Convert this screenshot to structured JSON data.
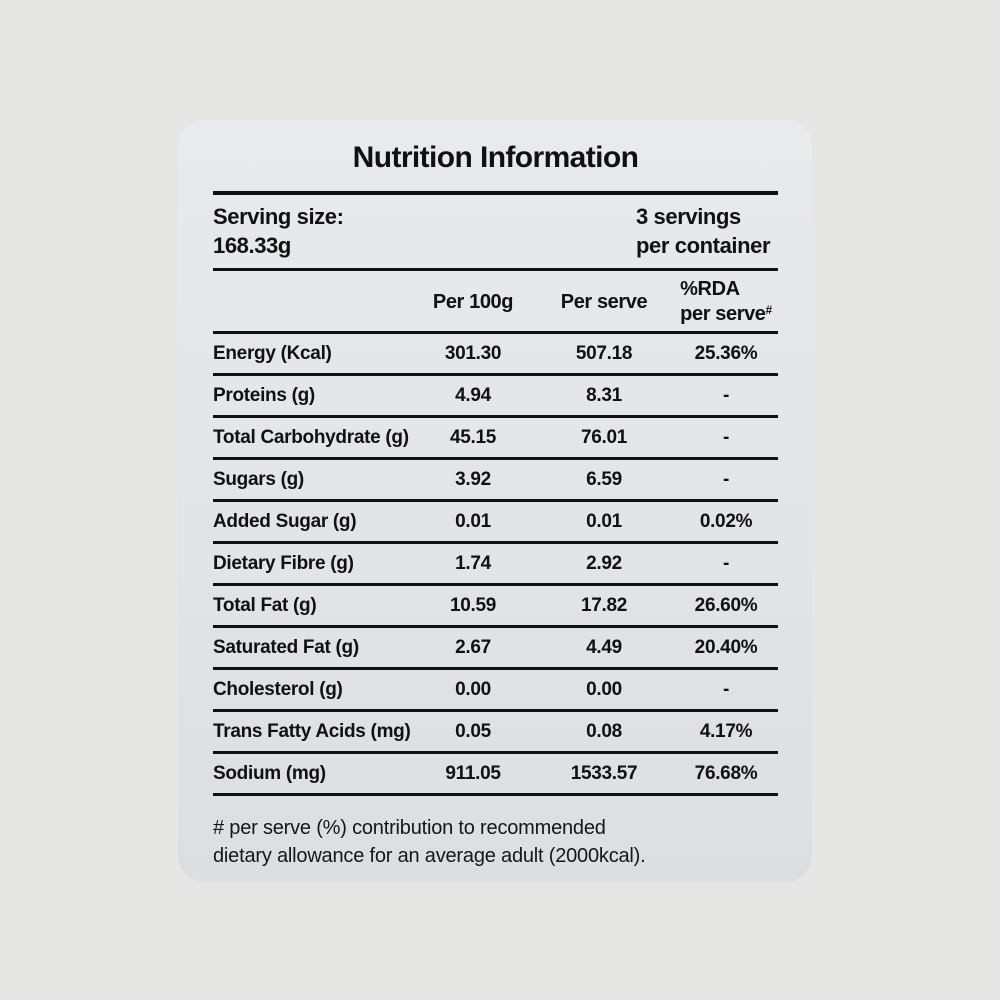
{
  "card": {
    "title": "Nutrition Information",
    "serving": {
      "label": "Serving size:",
      "size": "168.33g",
      "servings_line1": "3 servings",
      "servings_line2": "per container"
    },
    "columns": {
      "per_100g": "Per 100g",
      "per_serve": "Per serve",
      "rda_line1": "%RDA",
      "rda_line2": "per serve",
      "rda_superscript": "#"
    },
    "rows": [
      {
        "label": "Energy (Kcal)",
        "per_100g": "301.30",
        "per_serve": "507.18",
        "rda": "25.36%"
      },
      {
        "label": "Proteins (g)",
        "per_100g": "4.94",
        "per_serve": "8.31",
        "rda": "-"
      },
      {
        "label": "Total Carbohydrate (g)",
        "per_100g": "45.15",
        "per_serve": "76.01",
        "rda": "-"
      },
      {
        "label": "Sugars (g)",
        "per_100g": "3.92",
        "per_serve": "6.59",
        "rda": "-"
      },
      {
        "label": "Added Sugar (g)",
        "per_100g": "0.01",
        "per_serve": "0.01",
        "rda": "0.02%"
      },
      {
        "label": "Dietary Fibre (g)",
        "per_100g": "1.74",
        "per_serve": "2.92",
        "rda": "-"
      },
      {
        "label": "Total Fat (g)",
        "per_100g": "10.59",
        "per_serve": "17.82",
        "rda": "26.60%"
      },
      {
        "label": "Saturated Fat (g)",
        "per_100g": "2.67",
        "per_serve": "4.49",
        "rda": "20.40%"
      },
      {
        "label": "Cholesterol (g)",
        "per_100g": "0.00",
        "per_serve": "0.00",
        "rda": "-"
      },
      {
        "label": "Trans Fatty Acids (mg)",
        "per_100g": "0.05",
        "per_serve": "0.08",
        "rda": "4.17%"
      },
      {
        "label": "Sodium (mg)",
        "per_100g": "911.05",
        "per_serve": "1533.57",
        "rda": "76.68%"
      }
    ],
    "footnote": {
      "line1": "# per serve (%) contribution to recommended",
      "line2": "dietary allowance for an average adult (2000kcal)."
    }
  },
  "colors": {
    "page_background": "#e6e6e4",
    "card_background_top": "#e9eaed",
    "card_background_bottom": "#dcdee2",
    "text": "#111111",
    "rule": "#111111"
  }
}
